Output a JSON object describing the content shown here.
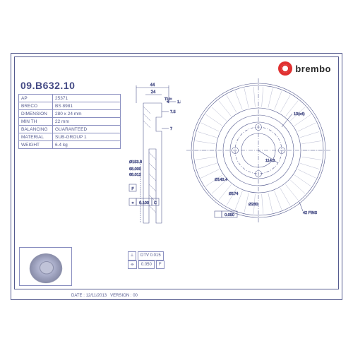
{
  "brand": "brembo",
  "part_number": "09.B632.10",
  "specs": {
    "rows": [
      {
        "label": "AP",
        "value": "25371"
      },
      {
        "label": "BRECO",
        "value": "BS 8981"
      },
      {
        "label": "DIMENSION",
        "value": "280 x 24 mm"
      },
      {
        "label": "MIN TH",
        "value": "22 mm"
      },
      {
        "label": "BALANCING",
        "value": "GUARANTEED"
      },
      {
        "label": "MATERIAL",
        "value": "SUB-GROUP 1"
      },
      {
        "label": "WEIGHT",
        "value": "6.4 kg"
      }
    ]
  },
  "side_view": {
    "dims": {
      "width_top": "44",
      "width_flange": "24",
      "th_arrow": "TH=",
      "th_val": "1.5",
      "offset1": "7.5",
      "offset2": "7",
      "dia_outer": "Ø153.8",
      "dia_hub": "68.000",
      "dia_hub_tol": "68.012",
      "gdt_f": "F",
      "gdt_c": "C",
      "gdt_val": "0.100",
      "gdt_sym": "⌖"
    }
  },
  "front_view": {
    "dims": {
      "bolt": "13(x4)",
      "dia_inner1": "Ø143.4",
      "dia_pcd": "114.3",
      "dia_mid": "Ø174",
      "dia_outer": "Ø280",
      "fins": "42 FINS",
      "gdt_val": "0.050"
    }
  },
  "bottom_tol": {
    "row1": {
      "sym": "⟂",
      "val": "DTV 0.015",
      "ref": ""
    },
    "row2": {
      "sym": "⌯",
      "val": "0.050",
      "ref": "F"
    }
  },
  "footer": {
    "date_label": "DATE :",
    "date": "12/11/2013",
    "version_label": "VERSION :",
    "version": "00"
  },
  "colors": {
    "line": "#555b8f",
    "line_light": "#8a8fc0",
    "accent": "#e03030",
    "text": "#444a85"
  }
}
